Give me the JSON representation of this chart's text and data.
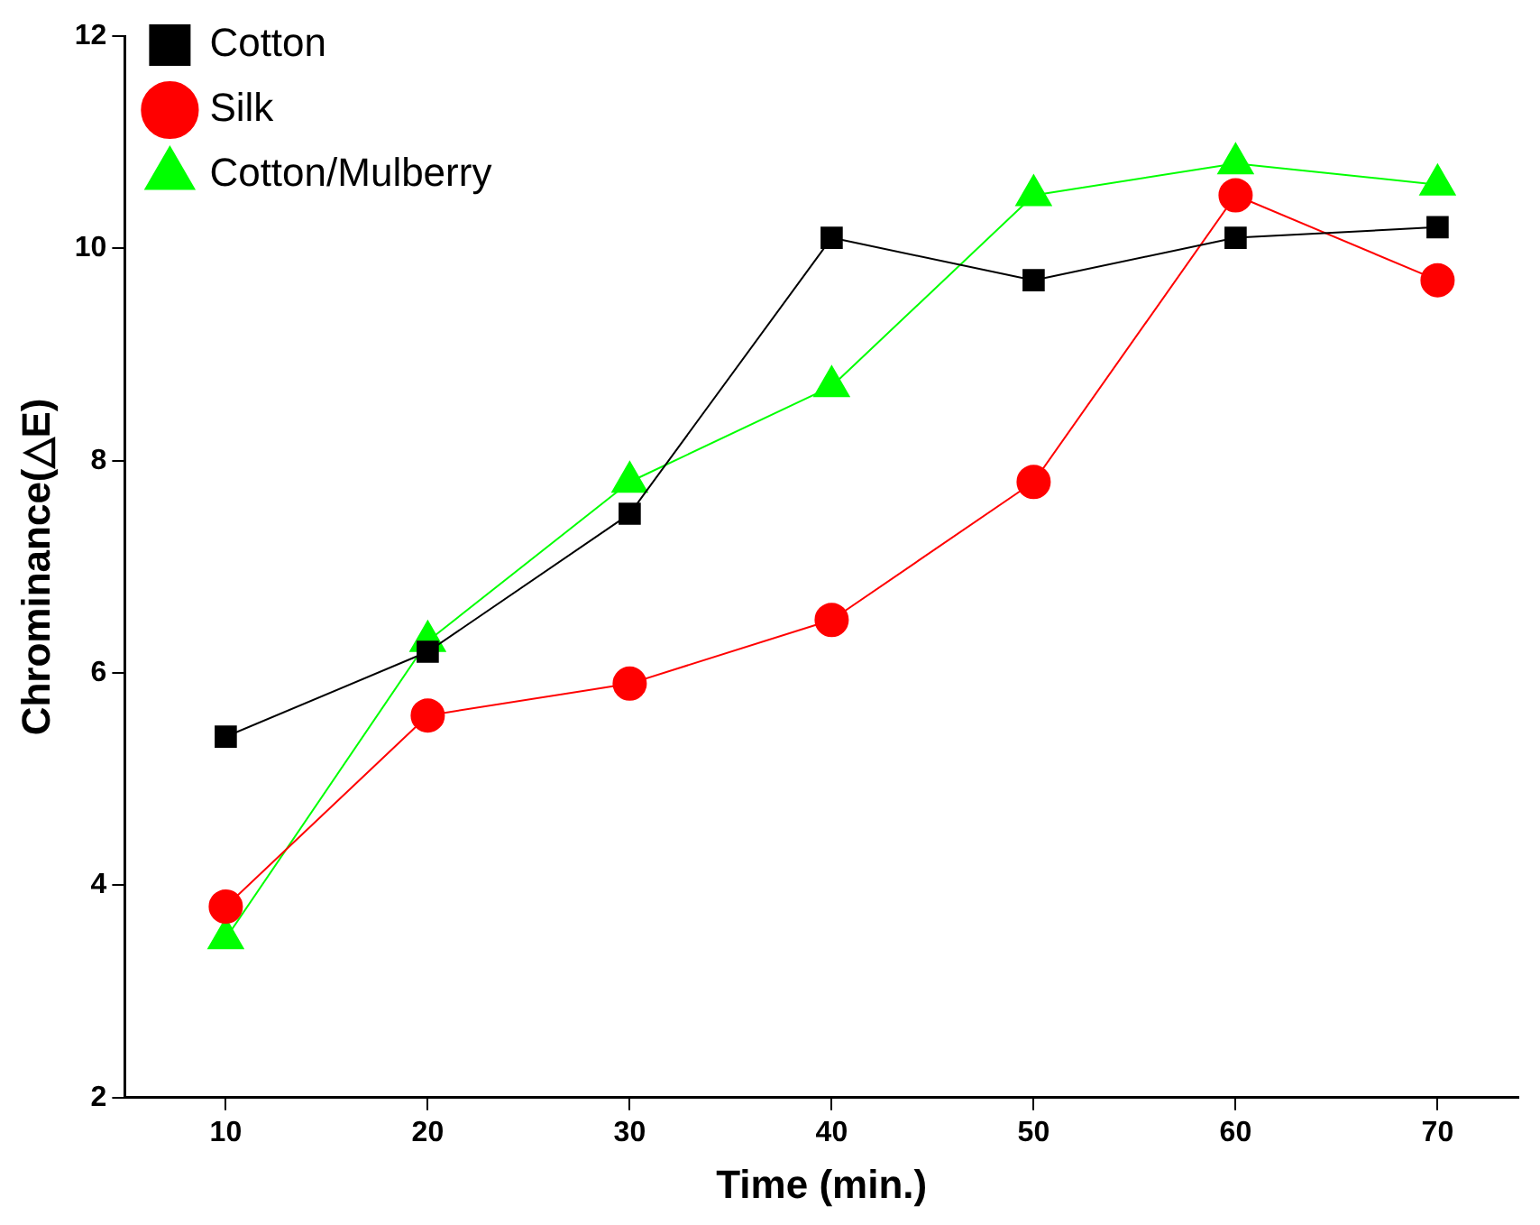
{
  "chart_data": {
    "type": "line",
    "xlabel": "Time (min.)",
    "ylabel": "Chrominance(△E)",
    "x": [
      10,
      20,
      30,
      40,
      50,
      60,
      70
    ],
    "series": [
      {
        "name": "Cotton",
        "color": "#000000",
        "marker": "square",
        "values": [
          5.4,
          6.2,
          7.5,
          10.1,
          9.7,
          10.1,
          10.2
        ]
      },
      {
        "name": "Silk",
        "color": "#ff0000",
        "marker": "circle",
        "values": [
          3.8,
          5.6,
          5.9,
          6.5,
          7.8,
          10.5,
          9.7
        ]
      },
      {
        "name": "Cotton/Mulberry",
        "color": "#00ff00",
        "marker": "triangle",
        "values": [
          3.5,
          6.3,
          7.8,
          8.7,
          10.5,
          10.8,
          10.6
        ]
      }
    ],
    "xlim": [
      5,
      74
    ],
    "xticks": [
      10,
      20,
      30,
      40,
      50,
      60,
      70
    ],
    "ylim": [
      2,
      12
    ],
    "yticks": [
      2,
      4,
      6,
      8,
      10,
      12
    ],
    "grid": false,
    "legend": "top left",
    "line_style": "solid"
  }
}
